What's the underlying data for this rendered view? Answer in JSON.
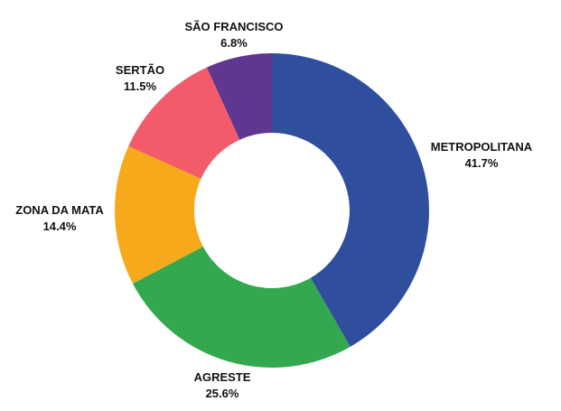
{
  "chart_data": {
    "type": "pie",
    "donut": true,
    "title": "",
    "legend": "none",
    "slices": [
      {
        "label": "METROPOLITANA",
        "value": 41.7,
        "value_label": "41.7%",
        "color": "#2f4f9e"
      },
      {
        "label": "AGRESTE",
        "value": 25.6,
        "value_label": "25.6%",
        "color": "#33a84f"
      },
      {
        "label": "ZONA DA MATA",
        "value": 14.4,
        "value_label": "14.4%",
        "color": "#f6a91b"
      },
      {
        "label": "SERTÃO",
        "value": 11.5,
        "value_label": "11.5%",
        "color": "#f45b6a"
      },
      {
        "label": "SÃO FRANCISCO",
        "value": 6.8,
        "value_label": "6.8%",
        "color": "#5f3690"
      }
    ]
  }
}
